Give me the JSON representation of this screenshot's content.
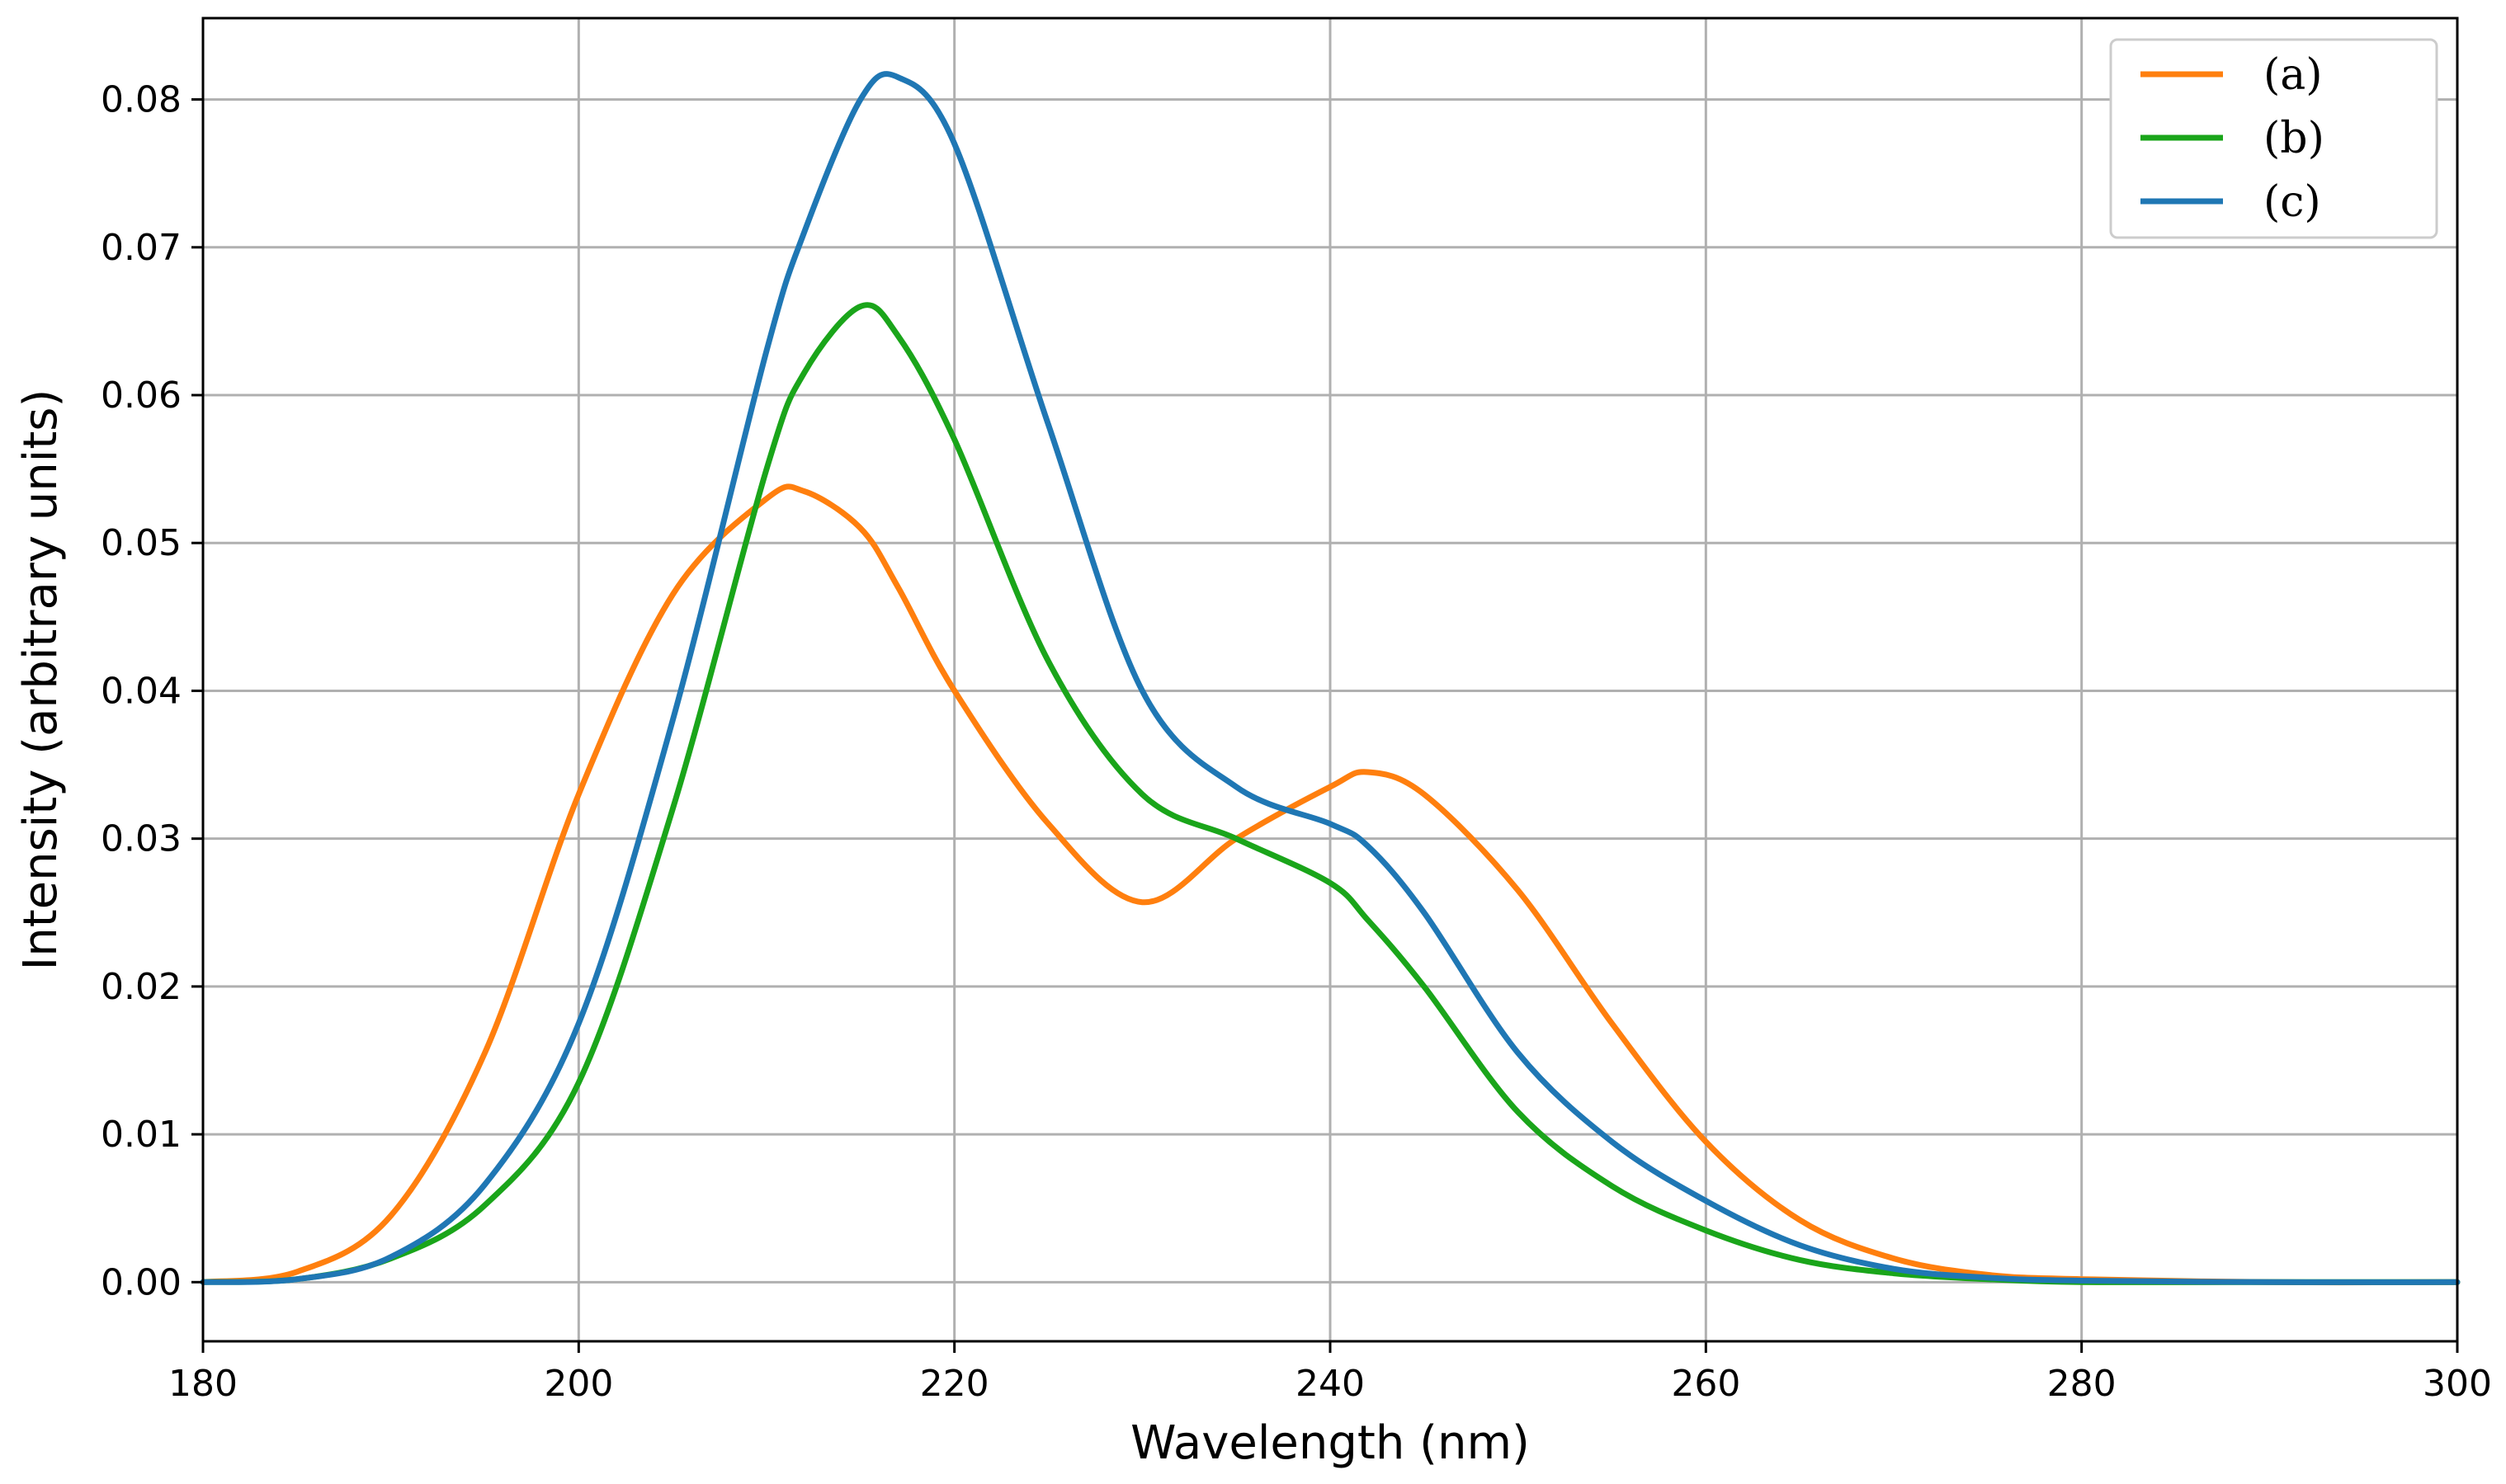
{
  "chart_data": {
    "type": "line",
    "title": "",
    "xlabel": "Wavelength (nm)",
    "ylabel": "Intensity (arbitrary units)",
    "xlim": [
      180,
      300
    ],
    "ylim": [
      -0.004,
      0.0855
    ],
    "xticks": [
      180,
      200,
      220,
      240,
      260,
      280,
      300
    ],
    "xtick_labels": [
      "180",
      "200",
      "220",
      "240",
      "260",
      "280",
      "300"
    ],
    "yticks": [
      0.0,
      0.01,
      0.02,
      0.03,
      0.04,
      0.05,
      0.06,
      0.07,
      0.08
    ],
    "ytick_labels": [
      "0.00",
      "0.01",
      "0.02",
      "0.03",
      "0.04",
      "0.05",
      "0.06",
      "0.07",
      "0.08"
    ],
    "grid": true,
    "legend_position": "top-right",
    "x": [
      180,
      185,
      190,
      195,
      200,
      205,
      210,
      212,
      215,
      217,
      220,
      225,
      230,
      235,
      240,
      242,
      245,
      250,
      255,
      260,
      265,
      270,
      275,
      280,
      290,
      300
    ],
    "series": [
      {
        "name": "(a)",
        "color": "#ff7f0e",
        "values": [
          0.0,
          0.0007,
          0.0045,
          0.0155,
          0.033,
          0.0465,
          0.053,
          0.0535,
          0.051,
          0.047,
          0.04,
          0.031,
          0.0257,
          0.03,
          0.0335,
          0.0345,
          0.033,
          0.0265,
          0.0175,
          0.0095,
          0.0042,
          0.0016,
          0.0005,
          0.0002,
          0.0,
          0.0
        ]
      },
      {
        "name": "(b)",
        "color": "#1aa51a",
        "values": [
          0.0,
          0.0002,
          0.0016,
          0.0052,
          0.0135,
          0.032,
          0.055,
          0.0615,
          0.066,
          0.064,
          0.057,
          0.042,
          0.033,
          0.03,
          0.027,
          0.0245,
          0.02,
          0.0115,
          0.0065,
          0.0035,
          0.0015,
          0.0006,
          0.0002,
          0.0,
          0.0,
          0.0
        ]
      },
      {
        "name": "(c)",
        "color": "#1f77b4",
        "values": [
          0.0,
          0.0002,
          0.0017,
          0.0066,
          0.0175,
          0.038,
          0.063,
          0.071,
          0.08,
          0.0815,
          0.077,
          0.058,
          0.04,
          0.0335,
          0.031,
          0.0295,
          0.025,
          0.0155,
          0.0095,
          0.0055,
          0.0025,
          0.0009,
          0.0003,
          0.0001,
          0.0,
          0.0
        ]
      }
    ]
  }
}
